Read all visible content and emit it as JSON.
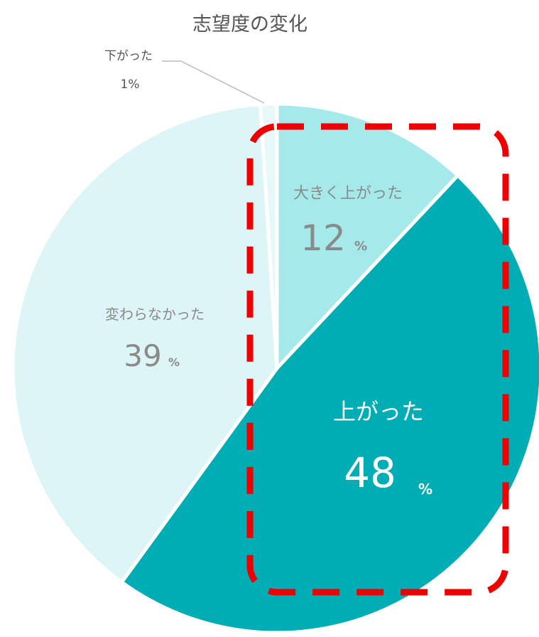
{
  "chart_data": {
    "type": "pie",
    "title": "志望度の変化",
    "unit": "%",
    "slices": [
      {
        "label": "大きく上がった",
        "value": 12,
        "color": "#a6e9ea"
      },
      {
        "label": "上がった",
        "value": 48,
        "color": "#00adb5"
      },
      {
        "label": "変わらなかった",
        "value": 39,
        "color": "#ddf5f6"
      },
      {
        "label": "下がった",
        "value": 1,
        "color": "#e7f8f8"
      }
    ],
    "highlight": {
      "slices": [
        "大きく上がった",
        "上がった"
      ],
      "style": "dashed-rounded-box",
      "color": "#ee0000"
    }
  }
}
